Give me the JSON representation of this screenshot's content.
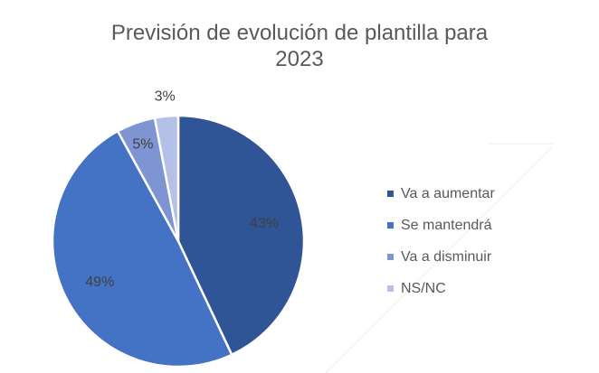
{
  "chart_data": {
    "type": "pie",
    "title_lines": [
      "Previsión de evolución de plantilla para",
      "2023"
    ],
    "categories": [
      "Va a aumentar",
      "Se mantendrá",
      "Va a disminuir",
      "NS/NC"
    ],
    "values": [
      43,
      49,
      5,
      3
    ],
    "value_labels": [
      "43%",
      "49%",
      "5%",
      "3%"
    ],
    "colors": [
      "#2f5597",
      "#4472c4",
      "#7f95d3",
      "#b4c0e6"
    ],
    "legend_position": "right",
    "start_angle_deg": 0,
    "direction": "clockwise"
  }
}
